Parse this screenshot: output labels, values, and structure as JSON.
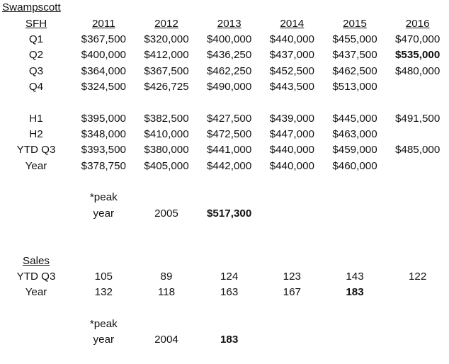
{
  "title": "Swampscott",
  "columns": [
    "2011",
    "2012",
    "2013",
    "2014",
    "2015",
    "2016"
  ],
  "sfh": {
    "label": "SFH",
    "quarter_rows": [
      {
        "label": "Q1",
        "values": [
          "$367,500",
          "$320,000",
          "$400,000",
          "$440,000",
          "$455,000",
          "$470,000"
        ]
      },
      {
        "label": "Q2",
        "values": [
          "$400,000",
          "$412,000",
          "$436,250",
          "$437,000",
          "$437,500",
          "$535,000"
        ],
        "bold": [
          5
        ]
      },
      {
        "label": "Q3",
        "values": [
          "$364,000",
          "$367,500",
          "$462,250",
          "$452,500",
          "$462,500",
          "$480,000"
        ]
      },
      {
        "label": "Q4",
        "values": [
          "$324,500",
          "$426,725",
          "$490,000",
          "$443,500",
          "$513,000",
          ""
        ]
      }
    ],
    "summary_rows": [
      {
        "label": "H1",
        "values": [
          "$395,000",
          "$382,500",
          "$427,500",
          "$439,000",
          "$445,000",
          "$491,500"
        ]
      },
      {
        "label": "H2",
        "values": [
          "$348,000",
          "$410,000",
          "$472,500",
          "$447,000",
          "$463,000",
          ""
        ]
      },
      {
        "label": "YTD Q3",
        "values": [
          "$393,500",
          "$380,000",
          "$441,000",
          "$440,000",
          "$459,000",
          "$485,000"
        ]
      },
      {
        "label": "Year",
        "values": [
          "$378,750",
          "$405,000",
          "$442,000",
          "$440,000",
          "$460,000",
          ""
        ]
      }
    ],
    "peak": {
      "note_line1": "*peak",
      "note_line2": "year",
      "year": "2005",
      "value": "$517,300"
    }
  },
  "sales": {
    "label": "Sales",
    "rows": [
      {
        "label": "YTD Q3",
        "values": [
          "105",
          "89",
          "124",
          "123",
          "143",
          "122"
        ]
      },
      {
        "label": "Year",
        "values": [
          "132",
          "118",
          "163",
          "167",
          "183",
          ""
        ],
        "bold": [
          4
        ]
      }
    ],
    "peak": {
      "note_line1": "*peak",
      "note_line2": "year",
      "year": "2004",
      "value": "183"
    }
  }
}
